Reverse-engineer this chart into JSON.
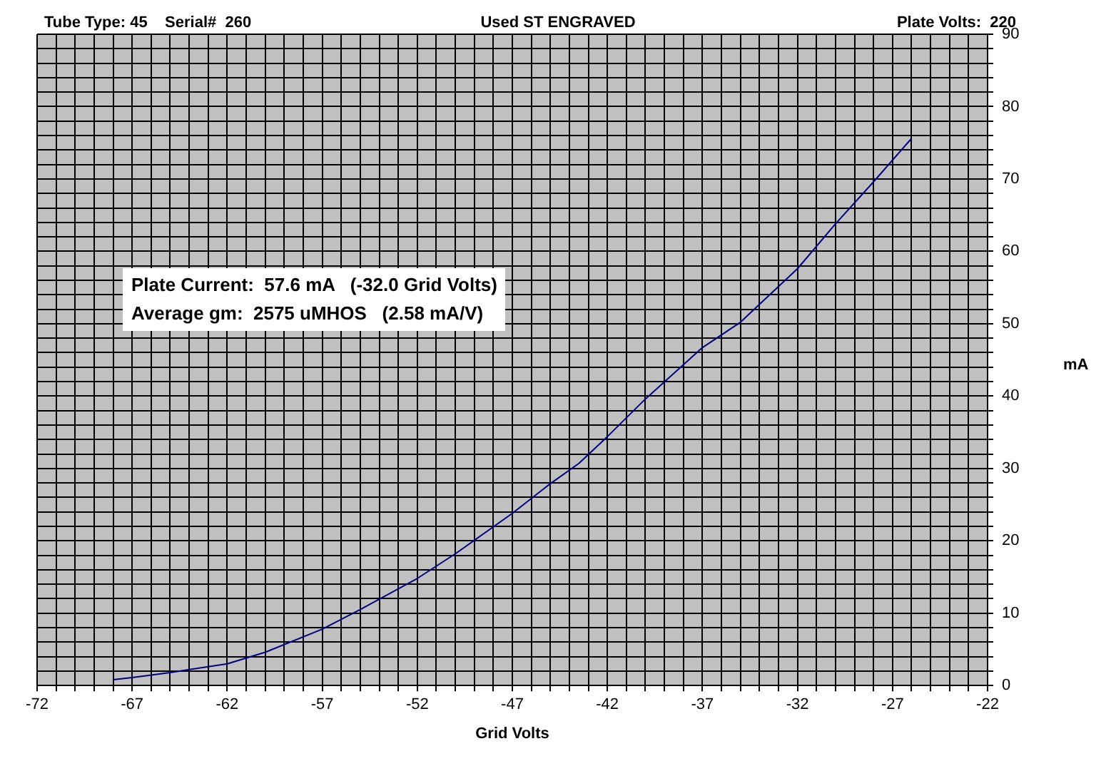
{
  "chart_data": {
    "type": "line",
    "title": "Tube Type: 45    Serial#  260",
    "subtitle": "Used ST ENGRAVED",
    "xlabel": "Grid Volts",
    "ylabel": "mA",
    "annotations": [
      "Plate Volts:  220",
      "Plate Current:  57.6 mA   (-32.0 Grid Volts)",
      "Average gm:  2575 uMHOS   (2.58 mA/V)"
    ],
    "series": [
      {
        "color": "#000080",
        "x": [
          -68,
          -67,
          -65,
          -62,
          -60,
          -57,
          -55,
          -52,
          -50,
          -47,
          -45,
          -43.5,
          -42,
          -40,
          -37,
          -35,
          -32,
          -30,
          -28,
          -26
        ],
        "values": [
          0.8,
          1.1,
          1.8,
          3.0,
          4.6,
          7.8,
          10.5,
          14.8,
          18.2,
          23.8,
          27.9,
          30.7,
          34.4,
          39.6,
          46.7,
          50.2,
          57.6,
          63.8,
          69.6,
          75.6
        ]
      }
    ],
    "xlim": [
      -72,
      -22
    ],
    "ylim": [
      0,
      90
    ],
    "xticks": [
      -72,
      {
        "value": -71,
        "label": null
      },
      {
        "value": -70,
        "label": null
      },
      {
        "value": -69,
        "label": null
      },
      {
        "value": -68,
        "label": null
      },
      -67,
      {
        "value": -66,
        "label": null
      },
      {
        "value": -65,
        "label": null
      },
      {
        "value": -64,
        "label": null
      },
      {
        "value": -63,
        "label": null
      },
      -62,
      {
        "value": -61,
        "label": null
      },
      {
        "value": -60,
        "label": null
      },
      {
        "value": -59,
        "label": null
      },
      {
        "value": -58,
        "label": null
      },
      -57,
      {
        "value": -56,
        "label": null
      },
      {
        "value": -55,
        "label": null
      },
      {
        "value": -54,
        "label": null
      },
      {
        "value": -53,
        "label": null
      },
      -52,
      {
        "value": -51,
        "label": null
      },
      {
        "value": -50,
        "label": null
      },
      {
        "value": -49,
        "label": null
      },
      {
        "value": -48,
        "label": null
      },
      -47,
      {
        "value": -46,
        "label": null
      },
      {
        "value": -45,
        "label": null
      },
      {
        "value": -44,
        "label": null
      },
      {
        "value": -43,
        "label": null
      },
      -42,
      {
        "value": -41,
        "label": null
      },
      {
        "value": -40,
        "label": null
      },
      {
        "value": -39,
        "label": null
      },
      {
        "value": -38,
        "label": null
      },
      -37,
      {
        "value": -36,
        "label": null
      },
      {
        "value": -35,
        "label": null
      },
      {
        "value": -34,
        "label": null
      },
      {
        "value": -33,
        "label": null
      },
      -32,
      {
        "value": -31,
        "label": null
      },
      {
        "value": -30,
        "label": null
      },
      {
        "value": -29,
        "label": null
      },
      {
        "value": -28,
        "label": null
      },
      -27,
      {
        "value": -26,
        "label": null
      },
      {
        "value": -25,
        "label": null
      },
      {
        "value": -24,
        "label": null
      },
      {
        "value": -23,
        "label": null
      },
      -22
    ],
    "yticks": [
      0,
      {
        "value": 2,
        "label": null
      },
      {
        "value": 4,
        "label": null
      },
      {
        "value": 6,
        "label": null
      },
      {
        "value": 8,
        "label": null
      },
      10,
      {
        "value": 12,
        "label": null
      },
      {
        "value": 14,
        "label": null
      },
      {
        "value": 16,
        "label": null
      },
      {
        "value": 18,
        "label": null
      },
      20,
      {
        "value": 22,
        "label": null
      },
      {
        "value": 24,
        "label": null
      },
      {
        "value": 26,
        "label": null
      },
      {
        "value": 28,
        "label": null
      },
      30,
      {
        "value": 32,
        "label": null
      },
      {
        "value": 34,
        "label": null
      },
      {
        "value": 36,
        "label": null
      },
      {
        "value": 38,
        "label": null
      },
      40,
      {
        "value": 42,
        "label": null
      },
      {
        "value": 44,
        "label": null
      },
      {
        "value": 46,
        "label": null
      },
      {
        "value": 48,
        "label": null
      },
      50,
      {
        "value": 52,
        "label": null
      },
      {
        "value": 54,
        "label": null
      },
      {
        "value": 56,
        "label": null
      },
      {
        "value": 58,
        "label": null
      },
      60,
      {
        "value": 62,
        "label": null
      },
      {
        "value": 64,
        "label": null
      },
      {
        "value": 66,
        "label": null
      },
      {
        "value": 68,
        "label": null
      },
      70,
      {
        "value": 72,
        "label": null
      },
      {
        "value": 74,
        "label": null
      },
      {
        "value": 76,
        "label": null
      },
      {
        "value": 78,
        "label": null
      },
      80,
      {
        "value": 82,
        "label": null
      },
      {
        "value": 84,
        "label": null
      },
      {
        "value": 86,
        "label": null
      },
      {
        "value": 88,
        "label": null
      },
      90
    ],
    "grid": true,
    "legend": false
  }
}
